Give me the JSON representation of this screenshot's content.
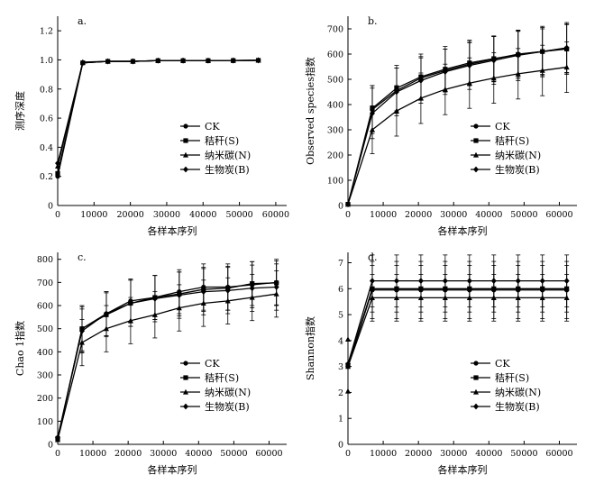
{
  "figure": {
    "series_names": [
      "CK",
      "秸秆(S)",
      "纳米碳(N)",
      "生物炭(B)"
    ],
    "series_markers": [
      "circle",
      "square",
      "triangle",
      "diamond"
    ],
    "line_color": "#000000"
  },
  "chart_data": [
    {
      "id": "a",
      "type": "line",
      "panel_label": "a.",
      "xlabel": "各样本序列",
      "ylabel": "测序深度",
      "xlim": [
        0,
        63000
      ],
      "ylim": [
        0,
        1.3
      ],
      "xticks": [
        0,
        10000,
        20000,
        30000,
        40000,
        50000,
        60000
      ],
      "yticks": [
        0,
        0.2,
        0.4,
        0.6,
        0.8,
        1.0,
        1.2
      ],
      "ytick_labels": [
        "0",
        "0.2",
        "0.4",
        "0.6",
        "0.8",
        "1.0",
        "1.2"
      ],
      "legend": [
        "CK",
        "秸秆(S)",
        "纳米碳(N)",
        "生物炭(B)"
      ],
      "series": [
        {
          "name": "CK",
          "x": [
            0,
            6900,
            13800,
            20700,
            27600,
            34500,
            41400,
            48300,
            55200
          ],
          "values": [
            0.2,
            0.98,
            0.99,
            0.99,
            0.995,
            0.995,
            0.995,
            0.996,
            0.997
          ]
        },
        {
          "name": "秸秆(S)",
          "x": [
            0,
            6900,
            13800,
            20700,
            27600,
            34500,
            41400,
            48300,
            55200
          ],
          "values": [
            0.22,
            0.98,
            0.99,
            0.99,
            0.995,
            0.995,
            0.995,
            0.996,
            0.997
          ]
        },
        {
          "name": "纳米碳(N)",
          "x": [
            0,
            6900,
            13800,
            20700,
            27600,
            34500,
            41400,
            48300,
            55200
          ],
          "values": [
            0.27,
            0.985,
            0.99,
            0.99,
            0.995,
            0.995,
            0.995,
            0.996,
            0.997
          ]
        },
        {
          "name": "生物炭(B)",
          "x": [
            0,
            6900,
            13800,
            20700,
            27600,
            34500,
            41400,
            48300,
            55200
          ],
          "values": [
            0.29,
            0.98,
            0.99,
            0.99,
            0.995,
            0.995,
            0.995,
            0.996,
            0.997
          ]
        }
      ]
    },
    {
      "id": "b",
      "type": "line",
      "panel_label": "b.",
      "xlabel": "各样本序列",
      "ylabel": "Observed species指数",
      "xlim": [
        0,
        65000
      ],
      "ylim": [
        0,
        750
      ],
      "xticks": [
        0,
        10000,
        20000,
        30000,
        40000,
        50000,
        60000
      ],
      "yticks": [
        0,
        100,
        200,
        300,
        400,
        500,
        600,
        700
      ],
      "ytick_labels": [
        "0",
        "100",
        "200",
        "300",
        "400",
        "500",
        "600",
        "700"
      ],
      "legend": [
        "CK",
        "秸秆(S)",
        "纳米碳(N)",
        "生物炭(B)"
      ],
      "series": [
        {
          "name": "CK",
          "x": [
            0,
            6900,
            13800,
            20700,
            27600,
            34500,
            41400,
            48300,
            55200,
            62100
          ],
          "values": [
            5,
            380,
            455,
            505,
            535,
            560,
            580,
            600,
            610,
            622
          ],
          "errors": [
            0,
            95,
            90,
            85,
            85,
            85,
            90,
            90,
            90,
            95
          ]
        },
        {
          "name": "秸秆(S)",
          "x": [
            0,
            6900,
            13800,
            20700,
            27600,
            34500,
            41400,
            48300,
            55200,
            62100
          ],
          "values": [
            5,
            385,
            465,
            510,
            540,
            565,
            582,
            598,
            610,
            620
          ],
          "errors": [
            0,
            90,
            90,
            90,
            90,
            90,
            90,
            95,
            95,
            100
          ]
        },
        {
          "name": "纳米碳(N)",
          "x": [
            0,
            6900,
            13800,
            20700,
            27600,
            34500,
            41400,
            48300,
            55200,
            62100
          ],
          "values": [
            5,
            300,
            375,
            425,
            460,
            485,
            505,
            522,
            535,
            548
          ],
          "errors": [
            0,
            95,
            100,
            100,
            100,
            100,
            100,
            100,
            100,
            100
          ]
        },
        {
          "name": "生物炭(B)",
          "x": [
            0,
            6900,
            13800,
            20700,
            27600,
            34500,
            41400,
            48300,
            55200,
            62100
          ],
          "values": [
            5,
            365,
            450,
            495,
            530,
            555,
            575,
            595,
            610,
            625
          ],
          "errors": [
            0,
            100,
            95,
            90,
            90,
            95,
            95,
            100,
            100,
            100
          ]
        }
      ]
    },
    {
      "id": "c",
      "type": "line",
      "panel_label": "c.",
      "xlabel": "各样本序列",
      "ylabel": "Chao 1指数",
      "xlim": [
        0,
        65000
      ],
      "ylim": [
        0,
        830
      ],
      "xticks": [
        0,
        10000,
        20000,
        30000,
        40000,
        50000,
        60000
      ],
      "yticks": [
        0,
        100,
        200,
        300,
        400,
        500,
        600,
        700,
        800
      ],
      "ytick_labels": [
        "0",
        "100",
        "200",
        "300",
        "400",
        "500",
        "600",
        "700",
        "800"
      ],
      "legend": [
        "CK",
        "秸秆(S)",
        "纳米碳(N)",
        "生物炭(B)"
      ],
      "series": [
        {
          "name": "CK",
          "x": [
            0,
            6900,
            13800,
            20700,
            27600,
            34500,
            41400,
            48300,
            55200,
            62100
          ],
          "values": [
            25,
            500,
            565,
            620,
            635,
            660,
            680,
            680,
            690,
            700
          ],
          "errors": [
            0,
            100,
            95,
            95,
            95,
            95,
            100,
            100,
            100,
            100
          ]
        },
        {
          "name": "秸秆(S)",
          "x": [
            0,
            6900,
            13800,
            20700,
            27600,
            34500,
            41400,
            48300,
            55200,
            62100
          ],
          "values": [
            25,
            500,
            560,
            610,
            635,
            650,
            670,
            675,
            695,
            698
          ],
          "errors": [
            0,
            95,
            95,
            100,
            95,
            95,
            95,
            95,
            95,
            95
          ]
        },
        {
          "name": "纳米碳(N)",
          "x": [
            0,
            6900,
            13800,
            20700,
            27600,
            34500,
            41400,
            48300,
            55200,
            62100
          ],
          "values": [
            20,
            440,
            500,
            535,
            560,
            590,
            610,
            620,
            635,
            650
          ],
          "errors": [
            0,
            100,
            100,
            100,
            100,
            100,
            100,
            100,
            100,
            100
          ]
        },
        {
          "name": "生物炭(B)",
          "x": [
            0,
            6900,
            13800,
            20700,
            27600,
            34500,
            41400,
            48300,
            55200,
            62100
          ],
          "values": [
            30,
            490,
            565,
            610,
            630,
            645,
            660,
            665,
            675,
            680
          ],
          "errors": [
            0,
            95,
            95,
            100,
            100,
            100,
            100,
            100,
            100,
            100
          ]
        }
      ]
    },
    {
      "id": "d",
      "type": "line",
      "panel_label": "d.",
      "xlabel": "各样本序列",
      "ylabel": "Shannon指数",
      "xlim": [
        0,
        65000
      ],
      "ylim": [
        0,
        7.4
      ],
      "xticks": [
        0,
        10000,
        20000,
        30000,
        40000,
        50000,
        60000
      ],
      "yticks": [
        0,
        1,
        2,
        3,
        4,
        5,
        6,
        7
      ],
      "ytick_labels": [
        "0",
        "1",
        "2",
        "3",
        "4",
        "5",
        "6",
        "7"
      ],
      "legend": [
        "CK",
        "秸秆(S)",
        "纳米碳(N)",
        "生物炭(B)"
      ],
      "series": [
        {
          "name": "CK",
          "x": [
            0,
            6900,
            13800,
            20700,
            27600,
            34500,
            41400,
            48300,
            55200,
            62100
          ],
          "values": [
            3.0,
            5.95,
            5.95,
            5.95,
            5.95,
            5.95,
            5.95,
            5.95,
            5.95,
            5.95
          ],
          "errors": [
            0,
            1.1,
            1.1,
            1.1,
            1.1,
            1.1,
            1.1,
            1.1,
            1.1,
            1.1
          ]
        },
        {
          "name": "秸秆(S)",
          "x": [
            0,
            6900,
            13800,
            20700,
            27600,
            34500,
            41400,
            48300,
            55200,
            62100
          ],
          "values": [
            3.05,
            6.0,
            6.0,
            6.0,
            6.0,
            6.0,
            6.0,
            6.0,
            6.0,
            6.0
          ],
          "errors": [
            0,
            0.9,
            0.9,
            0.9,
            0.9,
            0.9,
            0.9,
            0.9,
            0.9,
            0.9
          ]
        },
        {
          "name": "纳米碳(N)",
          "x": [
            0,
            6900,
            13800,
            20700,
            27600,
            34500,
            41400,
            48300,
            55200,
            62100
          ],
          "values": [
            3.0,
            5.65,
            5.65,
            5.65,
            5.65,
            5.65,
            5.65,
            5.65,
            5.65,
            5.65
          ],
          "errors": [
            0,
            0.9,
            0.9,
            0.9,
            0.9,
            0.9,
            0.9,
            0.9,
            0.9,
            0.9
          ]
        },
        {
          "name": "生物炭(B)",
          "x": [
            0,
            6900,
            13800,
            20700,
            27600,
            34500,
            41400,
            48300,
            55200,
            62100
          ],
          "values": [
            3.1,
            6.3,
            6.3,
            6.3,
            6.3,
            6.3,
            6.3,
            6.3,
            6.3,
            6.3
          ],
          "errors": [
            0,
            1.0,
            1.0,
            1.0,
            1.0,
            1.0,
            1.0,
            1.0,
            1.0,
            1.0
          ]
        }
      ],
      "outliers": [
        {
          "x": 0,
          "y": 4.05
        },
        {
          "x": 0,
          "y": 2.05
        }
      ]
    }
  ]
}
